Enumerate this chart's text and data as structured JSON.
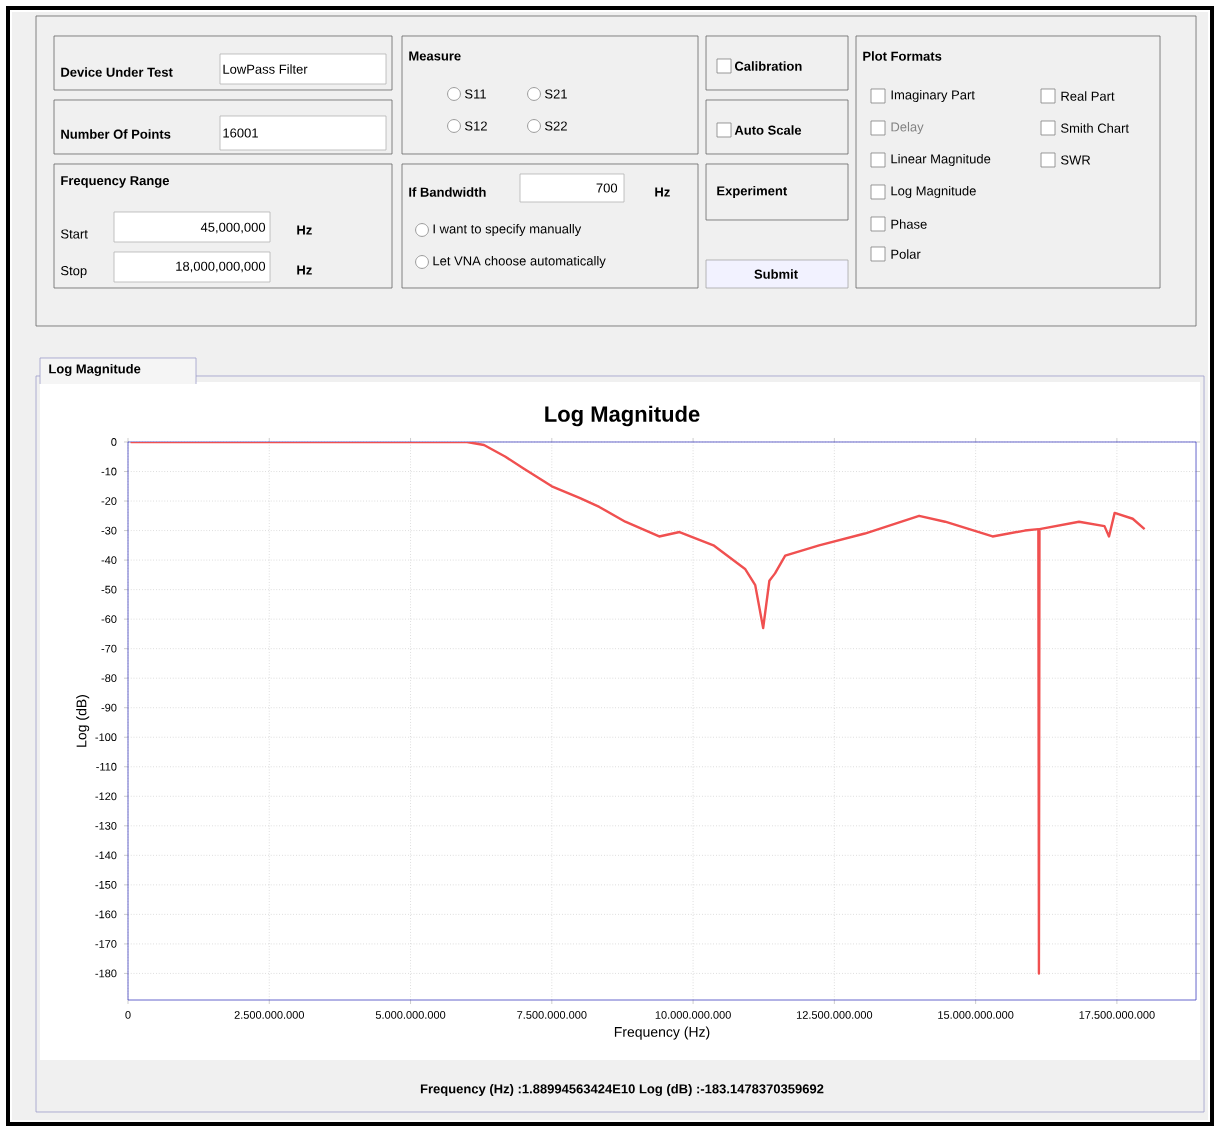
{
  "chart_data": {
    "type": "line",
    "title": "Log Magnitude",
    "xlabel": "Frequency (Hz)",
    "ylabel": "Log (dB)",
    "xlim": [
      0,
      18900000000
    ],
    "ylim": [
      -189,
      0
    ],
    "xticks": [
      0,
      {
        "value": 2500000000,
        "label": "2.500.000.000"
      },
      {
        "value": 5000000000,
        "label": "5.000.000.000"
      },
      {
        "value": 7500000000,
        "label": "7.500.000.000"
      },
      {
        "value": 10000000000,
        "label": "10.000.000.000"
      },
      {
        "value": 12500000000,
        "label": "12.500.000.000"
      },
      {
        "value": 15000000000,
        "label": "15.000.000.000"
      },
      {
        "value": 17500000000,
        "label": "17.500.000.000"
      }
    ],
    "yticks": [
      0,
      -10,
      -20,
      -30,
      -40,
      -50,
      -60,
      -70,
      -80,
      -90,
      -100,
      -110,
      -120,
      -130,
      -140,
      -150,
      -160,
      -170,
      -180
    ],
    "grid": true,
    "marker": "none",
    "line_style": "solid",
    "series": [
      {
        "color": "#f05050",
        "x": [
          45000000,
          1000000000,
          3000000000,
          5000000000,
          6000000000,
          6300000000,
          6680000000,
          7000000000,
          7500000000,
          8000000000,
          8340000000,
          8800000000,
          9400000000,
          9760000000,
          10360000000,
          10920000000,
          11100000000,
          11240000000,
          11350000000,
          11450000000,
          11630000000,
          12230000000,
          13040000000,
          14000000000,
          14460000000,
          15300000000,
          15870000000,
          16110000000,
          16120000000,
          16130000000,
          16830000000,
          17280000000,
          17360000000,
          17460000000,
          17780000000,
          17990000000
        ],
        "values": [
          0,
          0,
          0,
          0,
          0,
          -1,
          -5,
          -9,
          -15,
          -19,
          -22,
          -27,
          -32,
          -30.5,
          -35,
          -43,
          -48.5,
          -63,
          -47,
          -44.5,
          -38.5,
          -35,
          -31,
          -25,
          -27,
          -32,
          -30,
          -29.5,
          -180,
          -29.5,
          -27,
          -28.5,
          -32,
          -24,
          -26,
          -29.5
        ]
      }
    ],
    "annotations": [
      "Device Under Test",
      "LowPass Filter",
      "Number Of Points",
      "16001",
      "Frequency Range",
      "Start",
      "45,000,000",
      "Hz",
      "Stop",
      "18,000,000,000",
      "Hz",
      "Measure",
      "S11",
      "S21",
      "S12",
      "S22",
      "If Bandwidth",
      "700",
      "Hz",
      "I want to specify manually",
      "Let VNA choose automatically",
      "Calibration",
      "Auto Scale",
      "Experiment",
      "Submit",
      "Plot Formats",
      "Imaginary Part",
      "Real Part",
      "Delay",
      "Smith Chart",
      "Linear Magnitude",
      "SWR",
      "Log Magnitude",
      "Phase",
      "Polar",
      "Log Magnitude",
      "Frequency (Hz) :1.88994563424E10  Log (dB) :-183.1478370359692"
    ]
  }
}
